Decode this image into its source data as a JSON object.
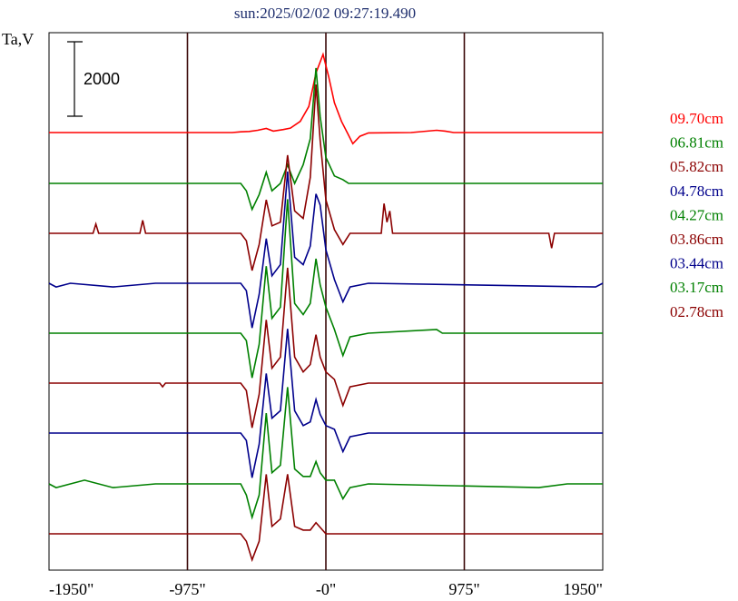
{
  "chart_data": {
    "type": "line",
    "title": "sun:2025/02/02 09:27:19.490",
    "ylabel": "Ta,V",
    "xlim": [
      -1950,
      1950
    ],
    "x_ticks": [
      -1950,
      -975,
      0,
      975,
      1950
    ],
    "x_tick_labels": [
      "-1950\"",
      "-975\"",
      "-0\"",
      "975\"",
      "1950\""
    ],
    "vertical_lines": [
      -975,
      0,
      975
    ],
    "scale_bar": {
      "value": 2000,
      "label": "2000"
    },
    "legend_placement": "right",
    "grid": false,
    "series": [
      {
        "name": "09.70cm",
        "color": "#ff0000",
        "baseline": 0,
        "profile": [
          [
            -1950,
            0
          ],
          [
            -660,
            0
          ],
          [
            -600,
            20
          ],
          [
            -540,
            30
          ],
          [
            -480,
            60
          ],
          [
            -420,
            110
          ],
          [
            -370,
            40
          ],
          [
            -300,
            80
          ],
          [
            -250,
            120
          ],
          [
            -180,
            300
          ],
          [
            -120,
            700
          ],
          [
            -70,
            1600
          ],
          [
            -20,
            2100
          ],
          [
            20,
            1500
          ],
          [
            60,
            800
          ],
          [
            110,
            300
          ],
          [
            150,
            0
          ],
          [
            190,
            -300
          ],
          [
            240,
            -100
          ],
          [
            300,
            -10
          ],
          [
            600,
            0
          ],
          [
            780,
            60
          ],
          [
            840,
            40
          ],
          [
            900,
            0
          ],
          [
            1950,
            0
          ]
        ]
      },
      {
        "name": "06.81cm",
        "color": "#008000",
        "baseline": 0,
        "profile": [
          [
            -1950,
            0
          ],
          [
            -600,
            0
          ],
          [
            -560,
            -200
          ],
          [
            -520,
            -700
          ],
          [
            -470,
            -300
          ],
          [
            -420,
            300
          ],
          [
            -380,
            -200
          ],
          [
            -320,
            0
          ],
          [
            -270,
            500
          ],
          [
            -220,
            0
          ],
          [
            -160,
            500
          ],
          [
            -110,
            1200
          ],
          [
            -70,
            3100
          ],
          [
            -40,
            1800
          ],
          [
            0,
            700
          ],
          [
            60,
            200
          ],
          [
            120,
            100
          ],
          [
            160,
            0
          ],
          [
            1950,
            0
          ]
        ]
      },
      {
        "name": "05.82cm",
        "color": "#8b0000",
        "baseline": 0,
        "profile": [
          [
            -1950,
            0
          ],
          [
            -1640,
            0
          ],
          [
            -1620,
            250
          ],
          [
            -1600,
            0
          ],
          [
            -1310,
            0
          ],
          [
            -1290,
            350
          ],
          [
            -1270,
            0
          ],
          [
            -600,
            0
          ],
          [
            -560,
            -200
          ],
          [
            -520,
            -1000
          ],
          [
            -470,
            -300
          ],
          [
            -420,
            900
          ],
          [
            -380,
            200
          ],
          [
            -320,
            300
          ],
          [
            -270,
            2100
          ],
          [
            -220,
            600
          ],
          [
            -160,
            400
          ],
          [
            -110,
            1500
          ],
          [
            -70,
            4000
          ],
          [
            -40,
            2500
          ],
          [
            0,
            900
          ],
          [
            60,
            100
          ],
          [
            120,
            -300
          ],
          [
            170,
            0
          ],
          [
            390,
            0
          ],
          [
            410,
            800
          ],
          [
            430,
            300
          ],
          [
            450,
            600
          ],
          [
            470,
            0
          ],
          [
            1570,
            0
          ],
          [
            1590,
            -400
          ],
          [
            1610,
            0
          ],
          [
            1950,
            0
          ]
        ]
      },
      {
        "name": "04.78cm",
        "color": "#00008b",
        "baseline": 0,
        "profile": [
          [
            -1950,
            0
          ],
          [
            -1900,
            -100
          ],
          [
            -1800,
            0
          ],
          [
            -1500,
            -100
          ],
          [
            -1200,
            0
          ],
          [
            -600,
            0
          ],
          [
            -560,
            -200
          ],
          [
            -520,
            -1200
          ],
          [
            -470,
            -300
          ],
          [
            -420,
            1200
          ],
          [
            -380,
            200
          ],
          [
            -320,
            500
          ],
          [
            -270,
            3000
          ],
          [
            -220,
            700
          ],
          [
            -160,
            500
          ],
          [
            -110,
            1000
          ],
          [
            -70,
            2400
          ],
          [
            -40,
            2100
          ],
          [
            0,
            900
          ],
          [
            60,
            100
          ],
          [
            120,
            -500
          ],
          [
            170,
            -100
          ],
          [
            300,
            0
          ],
          [
            1900,
            -100
          ],
          [
            1950,
            0
          ]
        ]
      },
      {
        "name": "04.27cm",
        "color": "#008000",
        "baseline": 0,
        "profile": [
          [
            -1950,
            0
          ],
          [
            -600,
            0
          ],
          [
            -560,
            -200
          ],
          [
            -520,
            -1200
          ],
          [
            -470,
            -300
          ],
          [
            -420,
            1800
          ],
          [
            -380,
            400
          ],
          [
            -320,
            700
          ],
          [
            -270,
            3600
          ],
          [
            -220,
            800
          ],
          [
            -160,
            500
          ],
          [
            -110,
            800
          ],
          [
            -70,
            2000
          ],
          [
            -40,
            1300
          ],
          [
            0,
            700
          ],
          [
            60,
            100
          ],
          [
            120,
            -600
          ],
          [
            170,
            -100
          ],
          [
            300,
            0
          ],
          [
            780,
            100
          ],
          [
            820,
            0
          ],
          [
            1950,
            0
          ]
        ]
      },
      {
        "name": "03.86cm",
        "color": "#8b0000",
        "baseline": 0,
        "profile": [
          [
            -1950,
            0
          ],
          [
            -1170,
            0
          ],
          [
            -1150,
            -100
          ],
          [
            -1130,
            0
          ],
          [
            -600,
            0
          ],
          [
            -560,
            -200
          ],
          [
            -520,
            -1200
          ],
          [
            -470,
            -300
          ],
          [
            -420,
            1700
          ],
          [
            -380,
            400
          ],
          [
            -320,
            700
          ],
          [
            -270,
            3100
          ],
          [
            -220,
            700
          ],
          [
            -160,
            300
          ],
          [
            -110,
            500
          ],
          [
            -70,
            1300
          ],
          [
            -40,
            700
          ],
          [
            0,
            300
          ],
          [
            60,
            100
          ],
          [
            120,
            -600
          ],
          [
            170,
            -100
          ],
          [
            300,
            0
          ],
          [
            1950,
            0
          ]
        ]
      },
      {
        "name": "03.44cm",
        "color": "#00008b",
        "baseline": 0,
        "profile": [
          [
            -1950,
            0
          ],
          [
            -600,
            0
          ],
          [
            -560,
            -200
          ],
          [
            -520,
            -1200
          ],
          [
            -470,
            -300
          ],
          [
            -420,
            1600
          ],
          [
            -380,
            400
          ],
          [
            -320,
            600
          ],
          [
            -270,
            2800
          ],
          [
            -220,
            600
          ],
          [
            -160,
            200
          ],
          [
            -110,
            300
          ],
          [
            -70,
            900
          ],
          [
            -40,
            500
          ],
          [
            0,
            200
          ],
          [
            60,
            100
          ],
          [
            120,
            -500
          ],
          [
            170,
            -100
          ],
          [
            300,
            0
          ],
          [
            1950,
            0
          ]
        ]
      },
      {
        "name": "03.17cm",
        "color": "#008000",
        "baseline": 0,
        "profile": [
          [
            -1950,
            0
          ],
          [
            -1900,
            -100
          ],
          [
            -1700,
            100
          ],
          [
            -1500,
            -100
          ],
          [
            -1200,
            0
          ],
          [
            -600,
            0
          ],
          [
            -560,
            -300
          ],
          [
            -520,
            -900
          ],
          [
            -470,
            -300
          ],
          [
            -420,
            1900
          ],
          [
            -380,
            300
          ],
          [
            -320,
            500
          ],
          [
            -270,
            2600
          ],
          [
            -220,
            400
          ],
          [
            -160,
            200
          ],
          [
            -110,
            200
          ],
          [
            -70,
            600
          ],
          [
            -40,
            300
          ],
          [
            0,
            100
          ],
          [
            60,
            100
          ],
          [
            120,
            -400
          ],
          [
            170,
            -100
          ],
          [
            300,
            0
          ],
          [
            1500,
            -100
          ],
          [
            1700,
            0
          ],
          [
            1950,
            0
          ]
        ]
      },
      {
        "name": "02.78cm",
        "color": "#8b0000",
        "baseline": 0,
        "profile": [
          [
            -1950,
            0
          ],
          [
            -600,
            0
          ],
          [
            -560,
            -200
          ],
          [
            -520,
            -700
          ],
          [
            -470,
            -200
          ],
          [
            -420,
            1600
          ],
          [
            -380,
            200
          ],
          [
            -320,
            400
          ],
          [
            -270,
            1600
          ],
          [
            -220,
            200
          ],
          [
            -160,
            100
          ],
          [
            -110,
            100
          ],
          [
            -70,
            300
          ],
          [
            0,
            0
          ],
          [
            1950,
            0
          ]
        ]
      }
    ]
  }
}
